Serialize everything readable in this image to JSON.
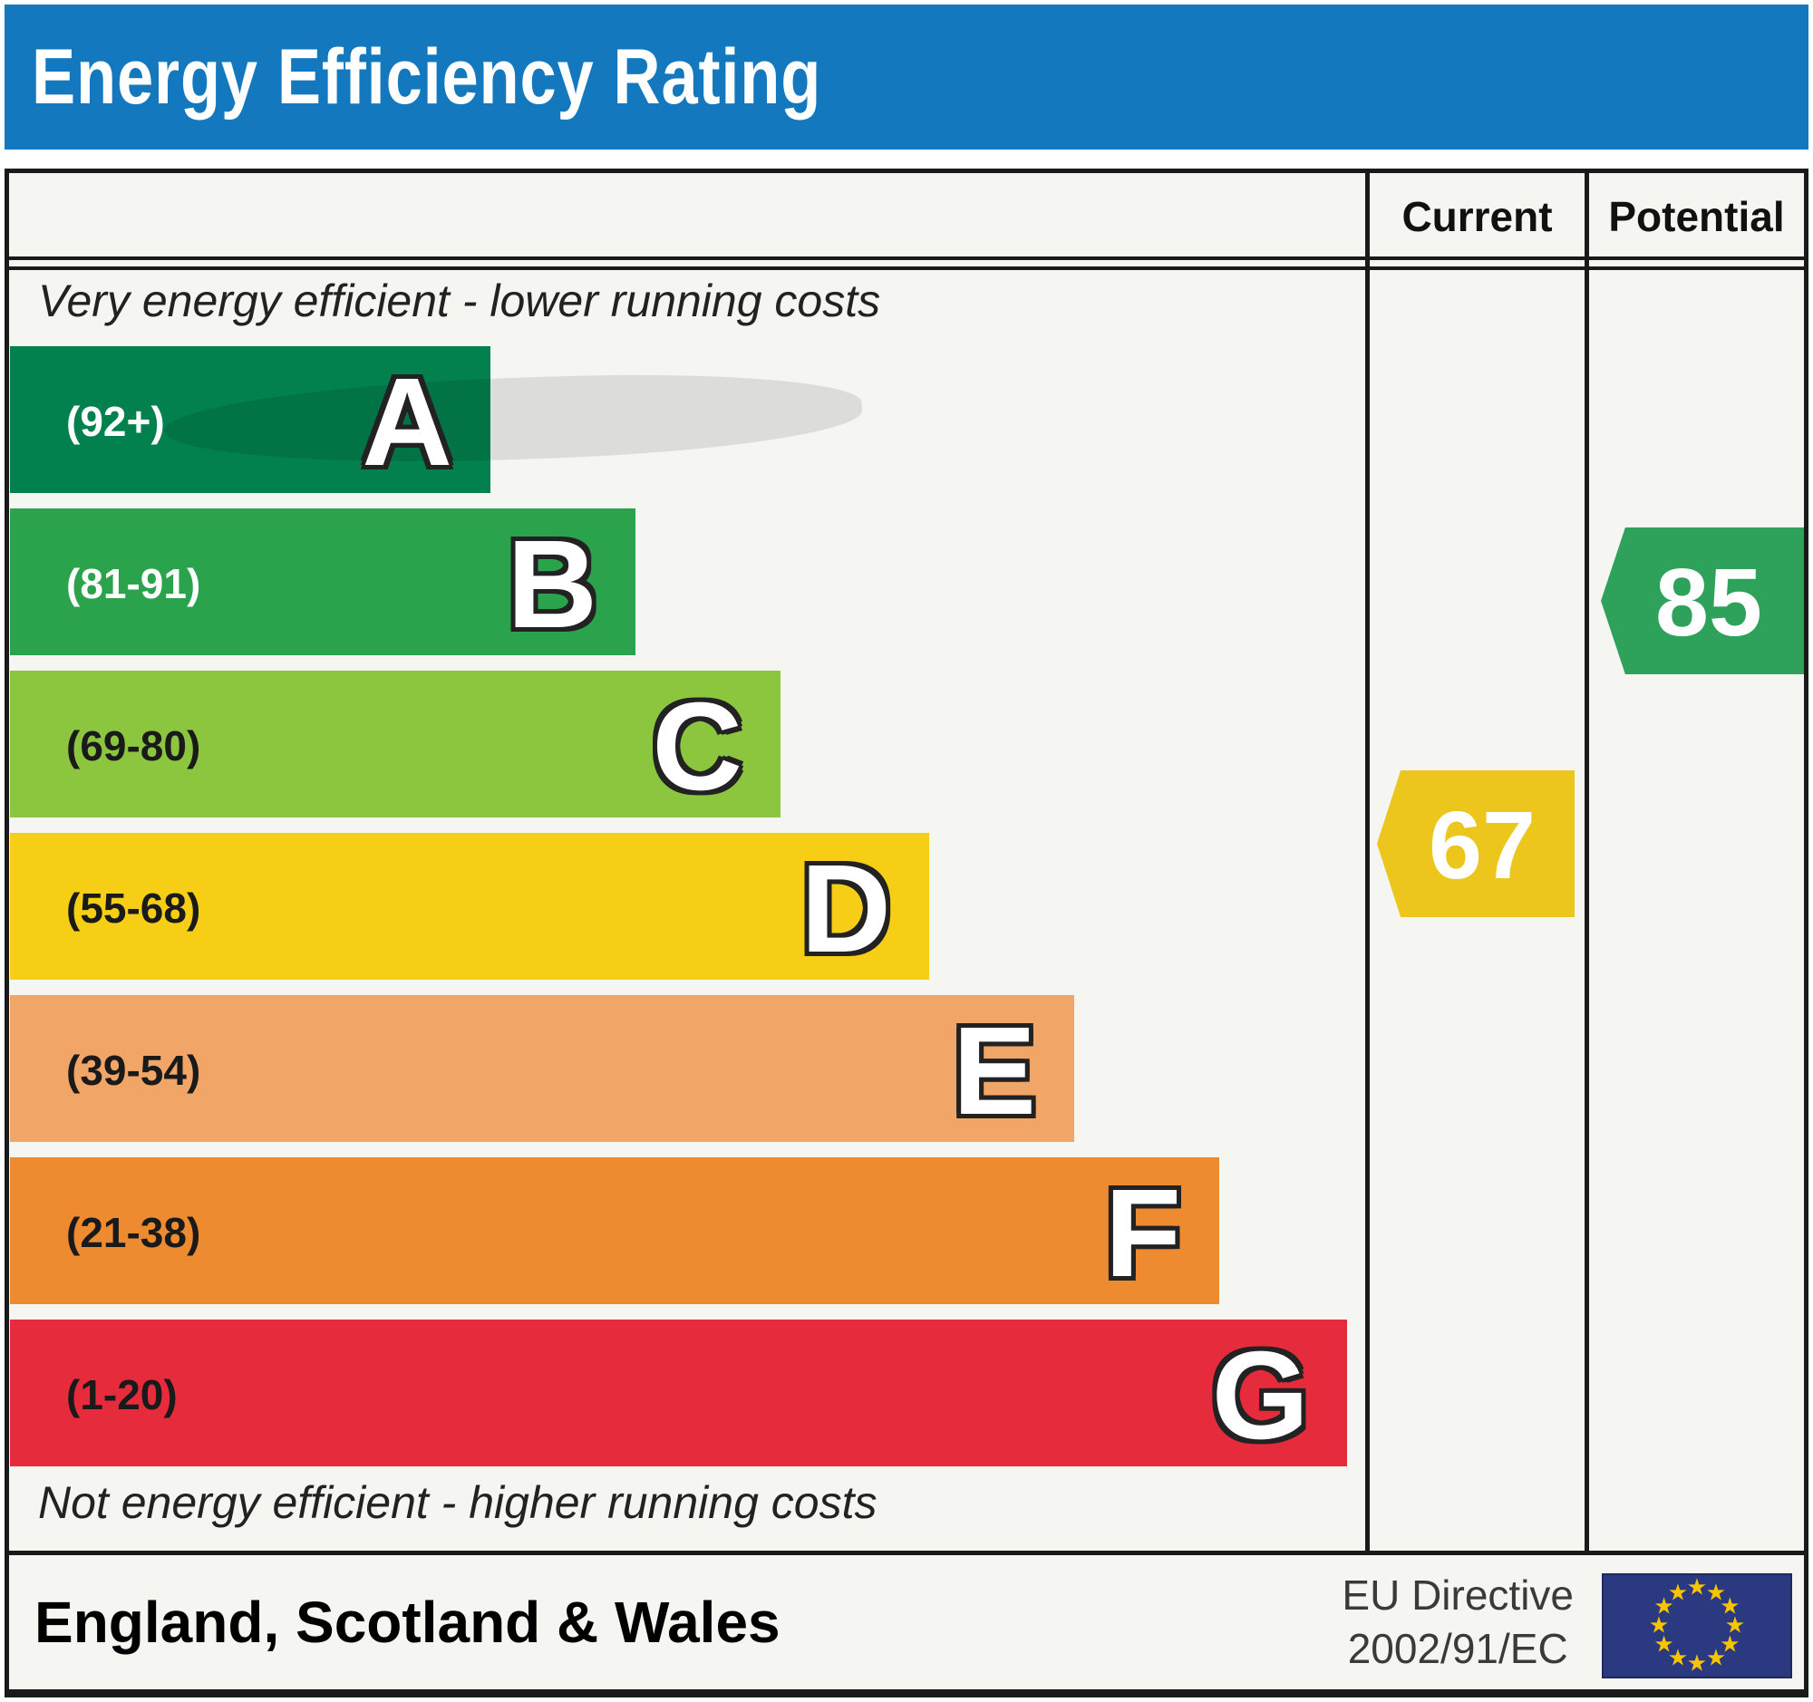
{
  "title": "Energy Efficiency Rating",
  "columns": {
    "current": "Current",
    "potential": "Potential"
  },
  "top_note": "Very energy efficient - lower running costs",
  "bottom_note": "Not energy efficient - higher running costs",
  "bands": [
    {
      "letter": "A",
      "range": "(92+)",
      "color": "#02804D",
      "label_color": "#FFFFFF",
      "width_pct": 35.5
    },
    {
      "letter": "B",
      "range": "(81-91)",
      "color": "#2BA34D",
      "label_color": "#FFFFFF",
      "width_pct": 46.2
    },
    {
      "letter": "C",
      "range": "(69-80)",
      "color": "#8CC63F",
      "label_color": "#1A1A1A",
      "width_pct": 56.9
    },
    {
      "letter": "D",
      "range": "(55-68)",
      "color": "#F5CE15",
      "label_color": "#1A1A1A",
      "width_pct": 67.9
    },
    {
      "letter": "E",
      "range": "(39-54)",
      "color": "#F1A566",
      "label_color": "#1A1A1A",
      "width_pct": 78.6
    },
    {
      "letter": "F",
      "range": "(21-38)",
      "color": "#EE8B30",
      "label_color": "#1A1A1A",
      "width_pct": 89.3
    },
    {
      "letter": "G",
      "range": "(1-20)",
      "color": "#E52B3C",
      "label_color": "#1A1A1A",
      "width_pct": 98.7
    }
  ],
  "current": {
    "value": "67",
    "color": "#EDC61D"
  },
  "potential": {
    "value": "85",
    "color": "#2EA25B"
  },
  "footer": {
    "region": "England, Scotland & Wales",
    "directive_line1": "EU Directive",
    "directive_line2": "2002/91/EC"
  },
  "colors": {
    "header_blue": "#1478BE",
    "panel_background": "#F5F6F2",
    "border": "#1A1A1A",
    "eu_flag_blue": "#2B3980",
    "eu_star_yellow": "#F7C500"
  },
  "chart_data": {
    "type": "bar",
    "title": "Energy Efficiency Rating",
    "categories": [
      "A",
      "B",
      "C",
      "D",
      "E",
      "F",
      "G"
    ],
    "tick_labels": [
      "(92+)",
      "(81-91)",
      "(69-80)",
      "(55-68)",
      "(39-54)",
      "(21-38)",
      "(1-20)"
    ],
    "series": [
      {
        "name": "band-length-percent-of-scale",
        "values": [
          35.5,
          46.2,
          56.9,
          67.9,
          78.6,
          89.3,
          98.7
        ]
      }
    ],
    "band_colors": [
      "#02804D",
      "#2BA34D",
      "#8CC63F",
      "#F5CE15",
      "#F1A566",
      "#EE8B30",
      "#E52B3C"
    ],
    "annotations": [
      {
        "label": "Current",
        "value": 67,
        "band": "D",
        "marker_color": "#EDC61D"
      },
      {
        "label": "Potential",
        "value": 85,
        "band": "B",
        "marker_color": "#2EA25B"
      }
    ],
    "top_note": "Very energy efficient - lower running costs",
    "bottom_note": "Not energy efficient - higher running costs",
    "region": "England, Scotland & Wales",
    "directive": "EU Directive 2002/91/EC",
    "legend_position": "none",
    "grid": false
  }
}
